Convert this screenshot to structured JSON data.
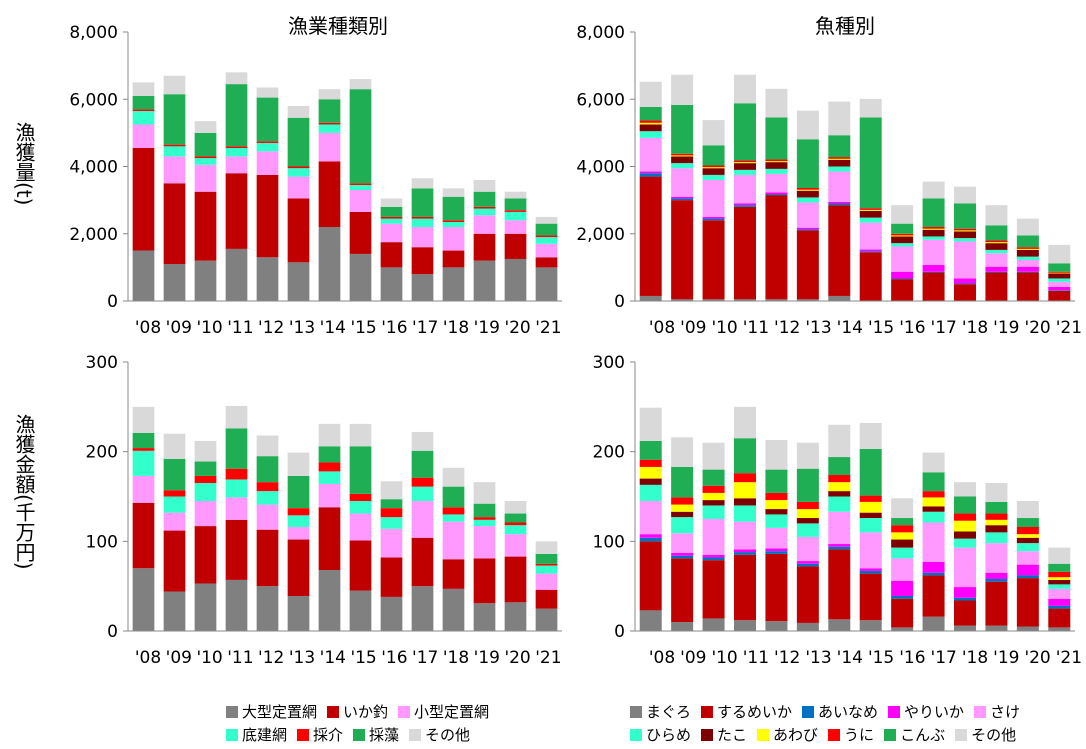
{
  "labels": {
    "ylabel_top": "漁獲量(t)",
    "ylabel_bottom": "漁獲金額(千万円)"
  },
  "colors": {
    "gray": "#808080",
    "red": "#c00000",
    "pink": "#ff99ff",
    "aqua": "#33ffcc",
    "brightred": "#ff0000",
    "green": "#1fae53",
    "lightgray": "#d9d9d9",
    "blue": "#0070c0",
    "magenta": "#ff00ff",
    "darkred": "#7f0000",
    "yellow": "#ffff00"
  },
  "legends": {
    "left": {
      "rows": [
        [
          {
            "name": "大型定置網",
            "color": "#808080"
          },
          {
            "name": "いか釣",
            "color": "#c00000"
          },
          {
            "name": "小型定置網",
            "color": "#ff99ff"
          }
        ],
        [
          {
            "name": "底建網",
            "color": "#33ffcc"
          },
          {
            "name": "採介",
            "color": "#ff0000"
          },
          {
            "name": "採藻",
            "color": "#1fae53"
          },
          {
            "name": "その他",
            "color": "#d9d9d9"
          }
        ]
      ]
    },
    "right": {
      "rows": [
        [
          {
            "name": "まぐろ",
            "color": "#808080"
          },
          {
            "name": "するめいか",
            "color": "#c00000"
          },
          {
            "name": "あいなめ",
            "color": "#0070c0"
          },
          {
            "name": "やりいか",
            "color": "#ff00ff"
          },
          {
            "name": "さけ",
            "color": "#ff99ff"
          }
        ],
        [
          {
            "name": "ひらめ",
            "color": "#33ffcc"
          },
          {
            "name": "たこ",
            "color": "#7f0000"
          },
          {
            "name": "あわび",
            "color": "#ffff00"
          },
          {
            "name": "うに",
            "color": "#ff0000"
          },
          {
            "name": "こんぶ",
            "color": "#1fae53"
          },
          {
            "name": "その他",
            "color": "#d9d9d9"
          }
        ]
      ]
    }
  },
  "chart_data": [
    {
      "id": "catch-by-fishery",
      "type": "bar",
      "stacked": true,
      "title": "漁業種類別",
      "ylabel": "漁獲量(t)",
      "ylim": [
        0,
        8000
      ],
      "yticks": [
        0,
        2000,
        4000,
        6000,
        8000
      ],
      "ytick_labels": [
        "0",
        "2,000",
        "4,000",
        "6,000",
        "8,000"
      ],
      "categories": [
        "'08",
        "'09",
        "'10",
        "'11",
        "'12",
        "'13",
        "'14",
        "'15",
        "'16",
        "'17",
        "'18",
        "'19",
        "'20",
        "'21"
      ],
      "series": [
        {
          "name": "大型定置網",
          "color": "#808080",
          "values": [
            1500,
            1100,
            1200,
            1550,
            1300,
            1150,
            2200,
            1400,
            1000,
            800,
            1000,
            1200,
            1250,
            1000
          ]
        },
        {
          "name": "いか釣",
          "color": "#c00000",
          "values": [
            3050,
            2400,
            2050,
            2250,
            2450,
            1900,
            1950,
            1250,
            750,
            800,
            500,
            800,
            750,
            300
          ]
        },
        {
          "name": "小型定置網",
          "color": "#ff99ff",
          "values": [
            700,
            800,
            800,
            500,
            700,
            650,
            850,
            650,
            550,
            600,
            700,
            550,
            400,
            400
          ]
        },
        {
          "name": "底建網",
          "color": "#33ffcc",
          "values": [
            400,
            300,
            200,
            250,
            250,
            250,
            250,
            150,
            150,
            250,
            150,
            200,
            250,
            200
          ]
        },
        {
          "name": "採介",
          "color": "#ff0000",
          "values": [
            50,
            50,
            50,
            50,
            50,
            50,
            50,
            50,
            50,
            50,
            50,
            50,
            50,
            50
          ]
        },
        {
          "name": "採藻",
          "color": "#1fae53",
          "values": [
            400,
            1500,
            700,
            1850,
            1300,
            1450,
            700,
            2800,
            300,
            850,
            700,
            450,
            350,
            350
          ]
        },
        {
          "name": "その他",
          "color": "#d9d9d9",
          "values": [
            400,
            550,
            350,
            350,
            300,
            350,
            300,
            300,
            250,
            300,
            250,
            350,
            200,
            200
          ]
        }
      ]
    },
    {
      "id": "catch-by-species",
      "type": "bar",
      "stacked": true,
      "title": "魚種別",
      "ylabel": "漁獲量(t)",
      "ylim": [
        0,
        8000
      ],
      "yticks": [
        0,
        2000,
        4000,
        6000,
        8000
      ],
      "ytick_labels": [
        "0",
        "2,000",
        "4,000",
        "6,000",
        "8,000"
      ],
      "categories": [
        "'08",
        "'09",
        "'10",
        "'11",
        "'12",
        "'13",
        "'14",
        "'15",
        "'16",
        "'17",
        "'18",
        "'19",
        "'20",
        "'21"
      ],
      "series": [
        {
          "name": "まぐろ",
          "color": "#808080",
          "values": [
            150,
            50,
            50,
            50,
            50,
            50,
            150,
            0,
            0,
            0,
            0,
            0,
            0,
            0
          ]
        },
        {
          "name": "するめいか",
          "color": "#c00000",
          "values": [
            3550,
            2950,
            2350,
            2750,
            3100,
            2050,
            2700,
            1450,
            650,
            850,
            500,
            850,
            850,
            300
          ]
        },
        {
          "name": "あいなめ",
          "color": "#0070c0",
          "values": [
            100,
            50,
            50,
            50,
            30,
            30,
            50,
            30,
            20,
            20,
            20,
            20,
            20,
            20
          ]
        },
        {
          "name": "やりいか",
          "color": "#ff00ff",
          "values": [
            50,
            50,
            50,
            50,
            50,
            50,
            50,
            50,
            200,
            200,
            150,
            150,
            150,
            100
          ]
        },
        {
          "name": "さけ",
          "color": "#ff99ff",
          "values": [
            1000,
            850,
            1100,
            850,
            550,
            750,
            900,
            800,
            750,
            750,
            1100,
            400,
            200,
            150
          ]
        },
        {
          "name": "ひらめ",
          "color": "#33ffcc",
          "values": [
            200,
            150,
            150,
            150,
            150,
            150,
            150,
            150,
            100,
            100,
            100,
            100,
            100,
            100
          ]
        },
        {
          "name": "たこ",
          "color": "#7f0000",
          "values": [
            200,
            200,
            200,
            200,
            200,
            200,
            200,
            200,
            200,
            200,
            200,
            200,
            200,
            150
          ]
        },
        {
          "name": "あわび",
          "color": "#ffff00",
          "values": [
            50,
            30,
            30,
            30,
            30,
            30,
            30,
            30,
            30,
            30,
            30,
            30,
            30,
            20
          ]
        },
        {
          "name": "うに",
          "color": "#ff0000",
          "values": [
            70,
            50,
            50,
            50,
            50,
            50,
            50,
            50,
            50,
            50,
            50,
            50,
            50,
            30
          ]
        },
        {
          "name": "こんぶ",
          "color": "#1fae53",
          "values": [
            400,
            1450,
            600,
            1700,
            1250,
            1450,
            650,
            2700,
            300,
            850,
            750,
            450,
            350,
            250
          ]
        },
        {
          "name": "その他",
          "color": "#d9d9d9",
          "values": [
            750,
            900,
            750,
            850,
            850,
            850,
            1000,
            550,
            550,
            500,
            500,
            600,
            500,
            550
          ]
        }
      ]
    },
    {
      "id": "value-by-fishery",
      "type": "bar",
      "stacked": true,
      "title": "",
      "ylabel": "漁獲金額(千万円)",
      "ylim": [
        0,
        300
      ],
      "yticks": [
        0,
        100,
        200,
        300
      ],
      "ytick_labels": [
        "0",
        "100",
        "200",
        "300"
      ],
      "categories": [
        "'08",
        "'09",
        "'10",
        "'11",
        "'12",
        "'13",
        "'14",
        "'15",
        "'16",
        "'17",
        "'18",
        "'19",
        "'20",
        "'21"
      ],
      "series": [
        {
          "name": "大型定置網",
          "color": "#808080",
          "values": [
            70,
            44,
            53,
            57,
            50,
            39,
            68,
            45,
            38,
            50,
            47,
            31,
            32,
            25
          ]
        },
        {
          "name": "いか釣",
          "color": "#c00000",
          "values": [
            73,
            68,
            64,
            67,
            63,
            63,
            70,
            56,
            44,
            54,
            33,
            50,
            51,
            21
          ]
        },
        {
          "name": "小型定置網",
          "color": "#ff99ff",
          "values": [
            30,
            20,
            28,
            25,
            28,
            14,
            26,
            30,
            32,
            41,
            42,
            36,
            25,
            18
          ]
        },
        {
          "name": "底建網",
          "color": "#33ffcc",
          "values": [
            28,
            18,
            20,
            20,
            15,
            13,
            14,
            14,
            13,
            16,
            8,
            7,
            10,
            9
          ]
        },
        {
          "name": "採介",
          "color": "#ff0000",
          "values": [
            3,
            7,
            8,
            12,
            10,
            8,
            10,
            8,
            10,
            10,
            8,
            3,
            3,
            2
          ]
        },
        {
          "name": "採藻",
          "color": "#1fae53",
          "values": [
            17,
            35,
            16,
            45,
            29,
            36,
            18,
            53,
            10,
            30,
            23,
            15,
            10,
            11
          ]
        },
        {
          "name": "その他",
          "color": "#d9d9d9",
          "values": [
            29,
            28,
            23,
            25,
            23,
            26,
            25,
            25,
            20,
            21,
            21,
            24,
            14,
            14
          ]
        }
      ]
    },
    {
      "id": "value-by-species",
      "type": "bar",
      "stacked": true,
      "title": "",
      "ylabel": "漁獲金額(千万円)",
      "ylim": [
        0,
        300
      ],
      "yticks": [
        0,
        100,
        200,
        300
      ],
      "ytick_labels": [
        "0",
        "100",
        "200",
        "300"
      ],
      "categories": [
        "'08",
        "'09",
        "'10",
        "'11",
        "'12",
        "'13",
        "'14",
        "'15",
        "'16",
        "'17",
        "'18",
        "'19",
        "'20",
        "'21"
      ],
      "series": [
        {
          "name": "まぐろ",
          "color": "#808080",
          "values": [
            23,
            10,
            14,
            12,
            11,
            9,
            13,
            12,
            4,
            16,
            6,
            6,
            5,
            4
          ]
        },
        {
          "name": "するめいか",
          "color": "#c00000",
          "values": [
            77,
            71,
            65,
            73,
            75,
            63,
            78,
            52,
            32,
            46,
            28,
            49,
            54,
            21
          ]
        },
        {
          "name": "あいなめ",
          "color": "#0070c0",
          "values": [
            4,
            3,
            3,
            3,
            3,
            3,
            3,
            3,
            3,
            3,
            3,
            3,
            3,
            3
          ]
        },
        {
          "name": "やりいか",
          "color": "#ff00ff",
          "values": [
            4,
            3,
            3,
            3,
            3,
            3,
            3,
            3,
            17,
            12,
            12,
            7,
            12,
            8
          ]
        },
        {
          "name": "さけ",
          "color": "#ff99ff",
          "values": [
            37,
            22,
            40,
            31,
            23,
            27,
            36,
            40,
            25,
            44,
            44,
            33,
            15,
            11
          ]
        },
        {
          "name": "ひらめ",
          "color": "#33ffcc",
          "values": [
            18,
            18,
            15,
            18,
            15,
            15,
            17,
            16,
            12,
            12,
            10,
            12,
            9,
            5
          ]
        },
        {
          "name": "たこ",
          "color": "#7f0000",
          "values": [
            7,
            6,
            6,
            8,
            6,
            6,
            6,
            6,
            9,
            6,
            8,
            8,
            6,
            5
          ]
        },
        {
          "name": "あわび",
          "color": "#ffff00",
          "values": [
            13,
            8,
            8,
            18,
            10,
            10,
            10,
            12,
            8,
            10,
            12,
            6,
            4,
            3
          ]
        },
        {
          "name": "うに",
          "color": "#ff0000",
          "values": [
            8,
            8,
            8,
            10,
            8,
            8,
            8,
            7,
            8,
            7,
            8,
            7,
            8,
            6
          ]
        },
        {
          "name": "こんぶ",
          "color": "#1fae53",
          "values": [
            21,
            34,
            18,
            39,
            26,
            37,
            20,
            52,
            8,
            21,
            19,
            13,
            10,
            9
          ]
        },
        {
          "name": "その他",
          "color": "#d9d9d9",
          "values": [
            37,
            33,
            30,
            35,
            33,
            29,
            36,
            29,
            22,
            22,
            16,
            21,
            19,
            18
          ]
        }
      ]
    }
  ]
}
